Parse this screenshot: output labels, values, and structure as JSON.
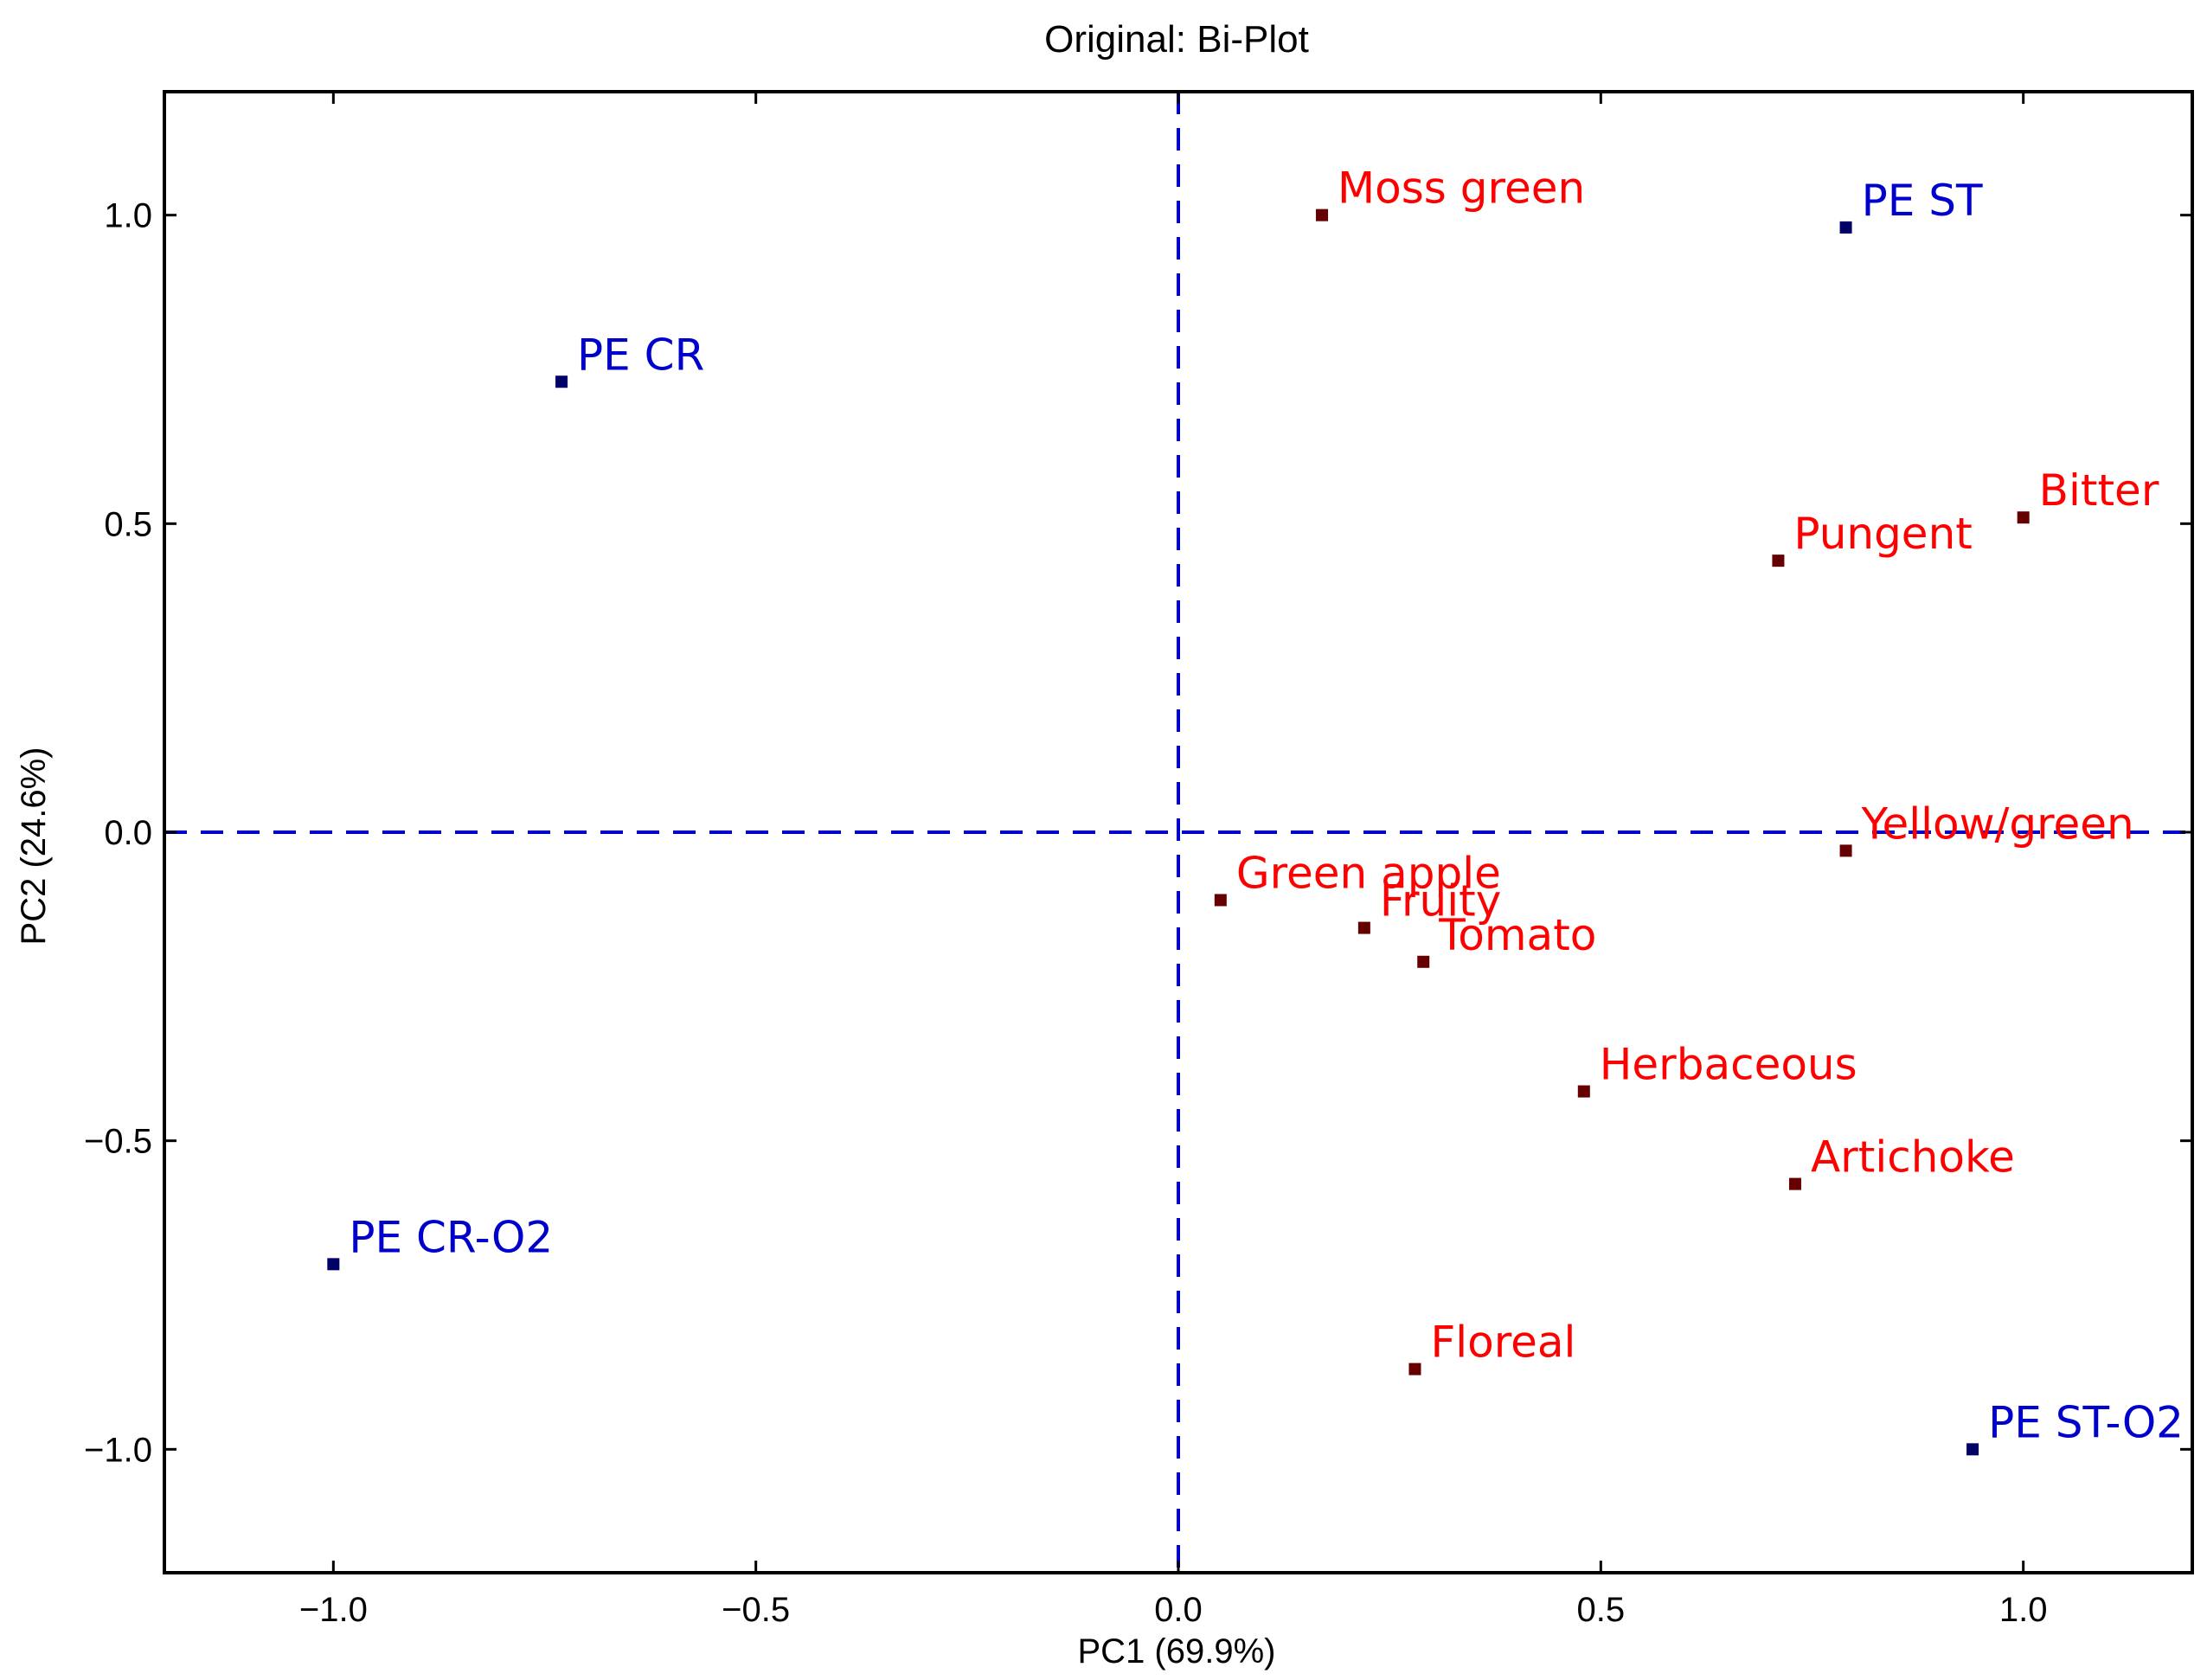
{
  "chart_data": {
    "type": "scatter",
    "title": "Original: Bi-Plot",
    "xlabel": "PC1 (69.9%)",
    "ylabel": "PC2 (24.6%)",
    "xlim": [
      -1.2,
      1.2
    ],
    "ylim": [
      -1.2,
      1.2
    ],
    "xticks": [
      -1.0,
      -0.5,
      0.0,
      0.5,
      1.0
    ],
    "yticks": [
      1.0,
      0.5,
      0.0,
      -0.5,
      -1.0
    ],
    "xtick_labels": [
      "−1.0",
      "−0.5",
      "0.0",
      "0.5",
      "1.0"
    ],
    "ytick_labels": [
      "1.0",
      "0.5",
      "0.0",
      "−0.5",
      "−1.0"
    ],
    "grid": false,
    "reference_lines": {
      "x": 0,
      "y": 0,
      "style": "dashed",
      "color": "#0000cc"
    },
    "colors": {
      "samples_marker": "#000066",
      "samples_text": "#0000cc",
      "attributes_marker": "#660000",
      "attributes_text": "#ff0000"
    },
    "samples": [
      {
        "label": "PE CR",
        "x": -0.73,
        "y": 0.73
      },
      {
        "label": "PE ST",
        "x": 0.79,
        "y": 0.98
      },
      {
        "label": "PE CR-O2",
        "x": -1.0,
        "y": -0.7
      },
      {
        "label": "PE ST-O2",
        "x": 0.94,
        "y": -1.0
      }
    ],
    "attributes": [
      {
        "label": "Moss green",
        "x": 0.17,
        "y": 1.0
      },
      {
        "label": "Bitter",
        "x": 1.0,
        "y": 0.51
      },
      {
        "label": "Pungent",
        "x": 0.71,
        "y": 0.44
      },
      {
        "label": "Yellow/green",
        "x": 0.79,
        "y": -0.03
      },
      {
        "label": "Green apple",
        "x": 0.05,
        "y": -0.11
      },
      {
        "label": "Fruity",
        "x": 0.22,
        "y": -0.155
      },
      {
        "label": "Tomato",
        "x": 0.29,
        "y": -0.21
      },
      {
        "label": "Herbaceous",
        "x": 0.48,
        "y": -0.42
      },
      {
        "label": "Artichoke",
        "x": 0.73,
        "y": -0.57
      },
      {
        "label": "Floreal",
        "x": 0.28,
        "y": -0.87
      }
    ]
  }
}
